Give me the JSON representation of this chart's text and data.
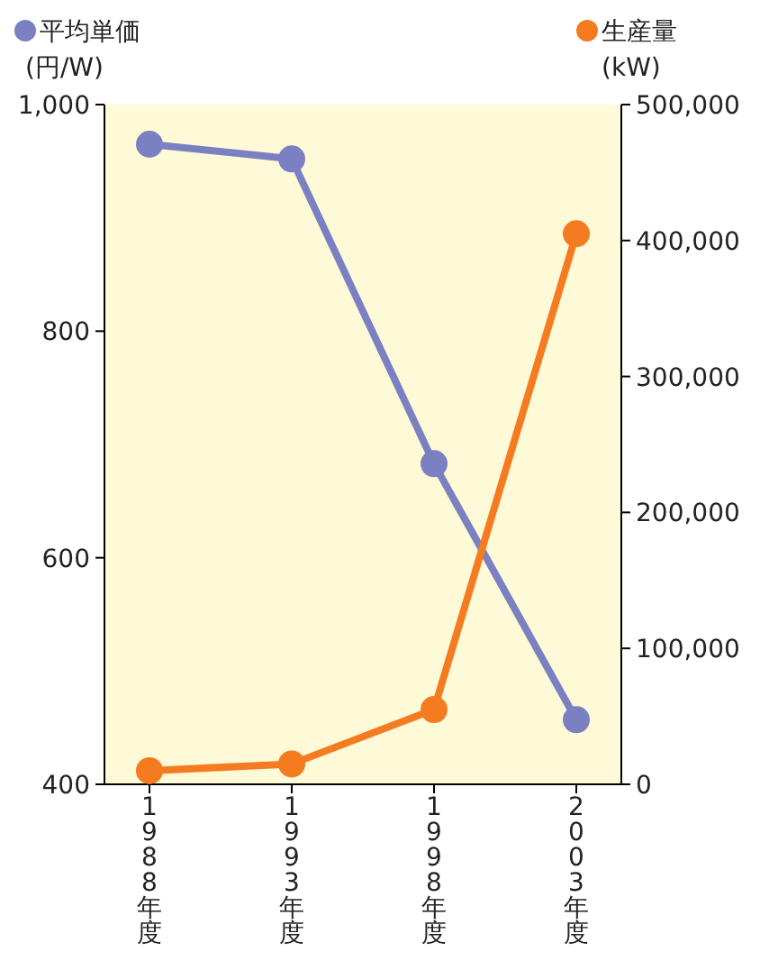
{
  "chart_data": {
    "type": "line",
    "categories": [
      "1988年度",
      "1993年度",
      "1998年度",
      "2003年度"
    ],
    "series": [
      {
        "name": "平均単価",
        "color": "#7b80c2",
        "values": [
          965,
          952,
          683,
          457
        ]
      },
      {
        "name": "生産量",
        "color": "#f47b20",
        "values": [
          10000,
          15000,
          55000,
          405000
        ],
        "axis": "y2"
      }
    ],
    "ylabel": "(円/W)",
    "y2label": "(kW)",
    "ylim": [
      400,
      1000
    ],
    "yticks": [
      {
        "value": 400,
        "label": "400"
      },
      {
        "value": 600,
        "label": "600"
      },
      {
        "value": 800,
        "label": "800"
      },
      {
        "value": 1000,
        "label": "1,000"
      }
    ],
    "y2lim": [
      0,
      500000
    ],
    "y2ticks": [
      {
        "value": 0,
        "label": "0"
      },
      {
        "value": 100000,
        "label": "100,000"
      },
      {
        "value": 200000,
        "label": "200,000"
      },
      {
        "value": 300000,
        "label": "300,000"
      },
      {
        "value": 400000,
        "label": "400,000"
      },
      {
        "value": 500000,
        "label": "500,000"
      }
    ],
    "marker": "circle",
    "line_style": "solid",
    "grid": false,
    "legend": "top"
  }
}
